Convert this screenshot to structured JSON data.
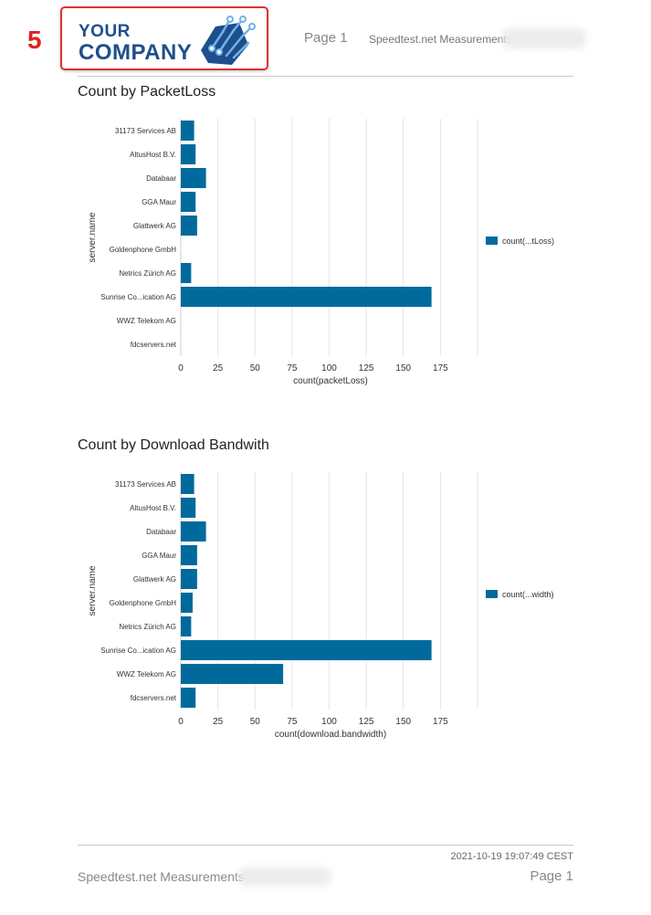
{
  "header": {
    "step_number": "5",
    "logo_line1": "YOUR",
    "logo_line2": "COMPANY",
    "page_label": "Page 1",
    "report_title": "Speedtest.net Measurements"
  },
  "footer": {
    "timestamp": "2021-10-19 19:07:49 CEST",
    "report_title": "Speedtest.net Measurements",
    "page_label": "Page 1"
  },
  "colors": {
    "bar": "#006a9c",
    "grid": "#e4e4e4",
    "badge": "#e02020",
    "logo": "#1f4e8c"
  },
  "chart_data": [
    {
      "type": "bar",
      "orientation": "horizontal",
      "title": "Count by PacketLoss",
      "ylabel": "server.name",
      "xlabel": "count(packetLoss)",
      "categories": [
        "31173 Services AB",
        "AltusHost B.V.",
        "Databaar",
        "GGA Maur",
        "Glattwerk AG",
        "Goldenphone GmbH",
        "Netrics Zürich AG",
        "Sunrise Co...ication AG",
        "WWZ Telekom AG",
        "fdcservers.net"
      ],
      "series": [
        {
          "name": "count(...tLoss)",
          "values": [
            9,
            10,
            17,
            10,
            11,
            0,
            7,
            169,
            0,
            0
          ]
        }
      ],
      "xticks": [
        0,
        25,
        50,
        75,
        100,
        125,
        150,
        175
      ],
      "xlim": [
        0,
        200
      ],
      "grid": true,
      "legend": "right"
    },
    {
      "type": "bar",
      "orientation": "horizontal",
      "title": "Count by Download Bandwith",
      "ylabel": "server.name",
      "xlabel": "count(download.bandwidth)",
      "categories": [
        "31173 Services AB",
        "AltusHost B.V.",
        "Databaar",
        "GGA Maur",
        "Glattwerk AG",
        "Goldenphone GmbH",
        "Netrics Zürich AG",
        "Sunrise Co...ication AG",
        "WWZ Telekom AG",
        "fdcservers.net"
      ],
      "series": [
        {
          "name": "count(...width)",
          "values": [
            9,
            10,
            17,
            11,
            11,
            8,
            7,
            169,
            69,
            10
          ]
        }
      ],
      "xticks": [
        0,
        25,
        50,
        75,
        100,
        125,
        150,
        175
      ],
      "xlim": [
        0,
        200
      ],
      "grid": true,
      "legend": "right"
    }
  ]
}
